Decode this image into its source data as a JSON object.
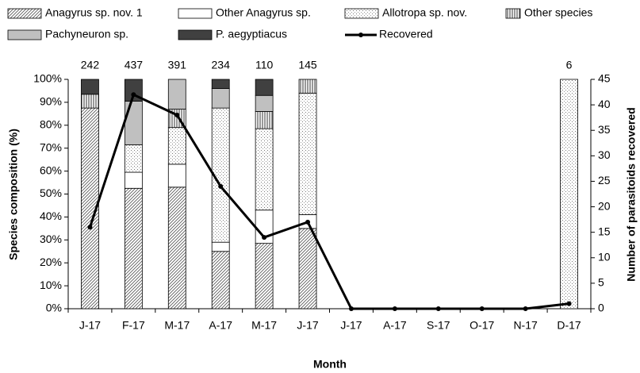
{
  "chart_data": {
    "type": "stacked-bar-line",
    "xlabel": "Month",
    "ylabel": "Species composition (%)",
    "y2label": "Number of parasitoids recovered",
    "categories": [
      "J-17",
      "F-17",
      "M-17",
      "A-17",
      "M-17",
      "J-17",
      "J-17",
      "A-17",
      "S-17",
      "O-17",
      "N-17",
      "D-17"
    ],
    "bar_labels": [
      "242",
      "437",
      "391",
      "234",
      "110",
      "145",
      null,
      null,
      null,
      null,
      null,
      "6"
    ],
    "ylim": [
      0,
      100
    ],
    "yticks": [
      {
        "value": 0,
        "label": "0%"
      },
      {
        "value": 10,
        "label": "10%"
      },
      {
        "value": 20,
        "label": "20%"
      },
      {
        "value": 30,
        "label": "30%"
      },
      {
        "value": 40,
        "label": "40%"
      },
      {
        "value": 50,
        "label": "50%"
      },
      {
        "value": 60,
        "label": "60%"
      },
      {
        "value": 70,
        "label": "70%"
      },
      {
        "value": 80,
        "label": "80%"
      },
      {
        "value": 90,
        "label": "90%"
      },
      {
        "value": 100,
        "label": "100%"
      }
    ],
    "y2lim": [
      0,
      45
    ],
    "y2ticks": [
      0,
      5,
      10,
      15,
      20,
      25,
      30,
      35,
      40,
      45
    ],
    "series": [
      {
        "name": "Anagyrus sp. nov. 1",
        "color": "#ffffff",
        "pattern": "diagonal",
        "values": [
          87.5,
          52.5,
          53,
          25,
          28.5,
          35,
          null,
          null,
          null,
          null,
          null,
          0
        ]
      },
      {
        "name": "Other Anagyrus sp.",
        "color": "#ffffff",
        "pattern": "none",
        "values": [
          0,
          7,
          10,
          4,
          14.5,
          6,
          null,
          null,
          null,
          null,
          null,
          0
        ]
      },
      {
        "name": "Allotropa sp. nov.",
        "color": "#ffffff",
        "pattern": "dots",
        "values": [
          0,
          12,
          16,
          58.5,
          35.5,
          53,
          null,
          null,
          null,
          null,
          null,
          100
        ]
      },
      {
        "name": "Other species",
        "color": "#ffffff",
        "pattern": "vertical",
        "values": [
          6,
          0,
          8,
          0,
          7.5,
          6,
          null,
          null,
          null,
          null,
          null,
          0
        ]
      },
      {
        "name": "Pachyneuron sp.",
        "color": "#c0c0c0",
        "pattern": "none",
        "values": [
          0,
          19,
          13,
          8.5,
          7,
          0,
          null,
          null,
          null,
          null,
          null,
          0
        ]
      },
      {
        "name": "P. aegyptiacus",
        "color": "#404040",
        "pattern": "none",
        "values": [
          6.5,
          9.5,
          0,
          4,
          7,
          0,
          null,
          null,
          null,
          null,
          null,
          0
        ]
      },
      {
        "name": "Recovered",
        "color": "#000000",
        "axis": "y2",
        "type": "line",
        "values": [
          16,
          42,
          38,
          24,
          14,
          17,
          0,
          0,
          0,
          0,
          0,
          1
        ]
      }
    ]
  }
}
